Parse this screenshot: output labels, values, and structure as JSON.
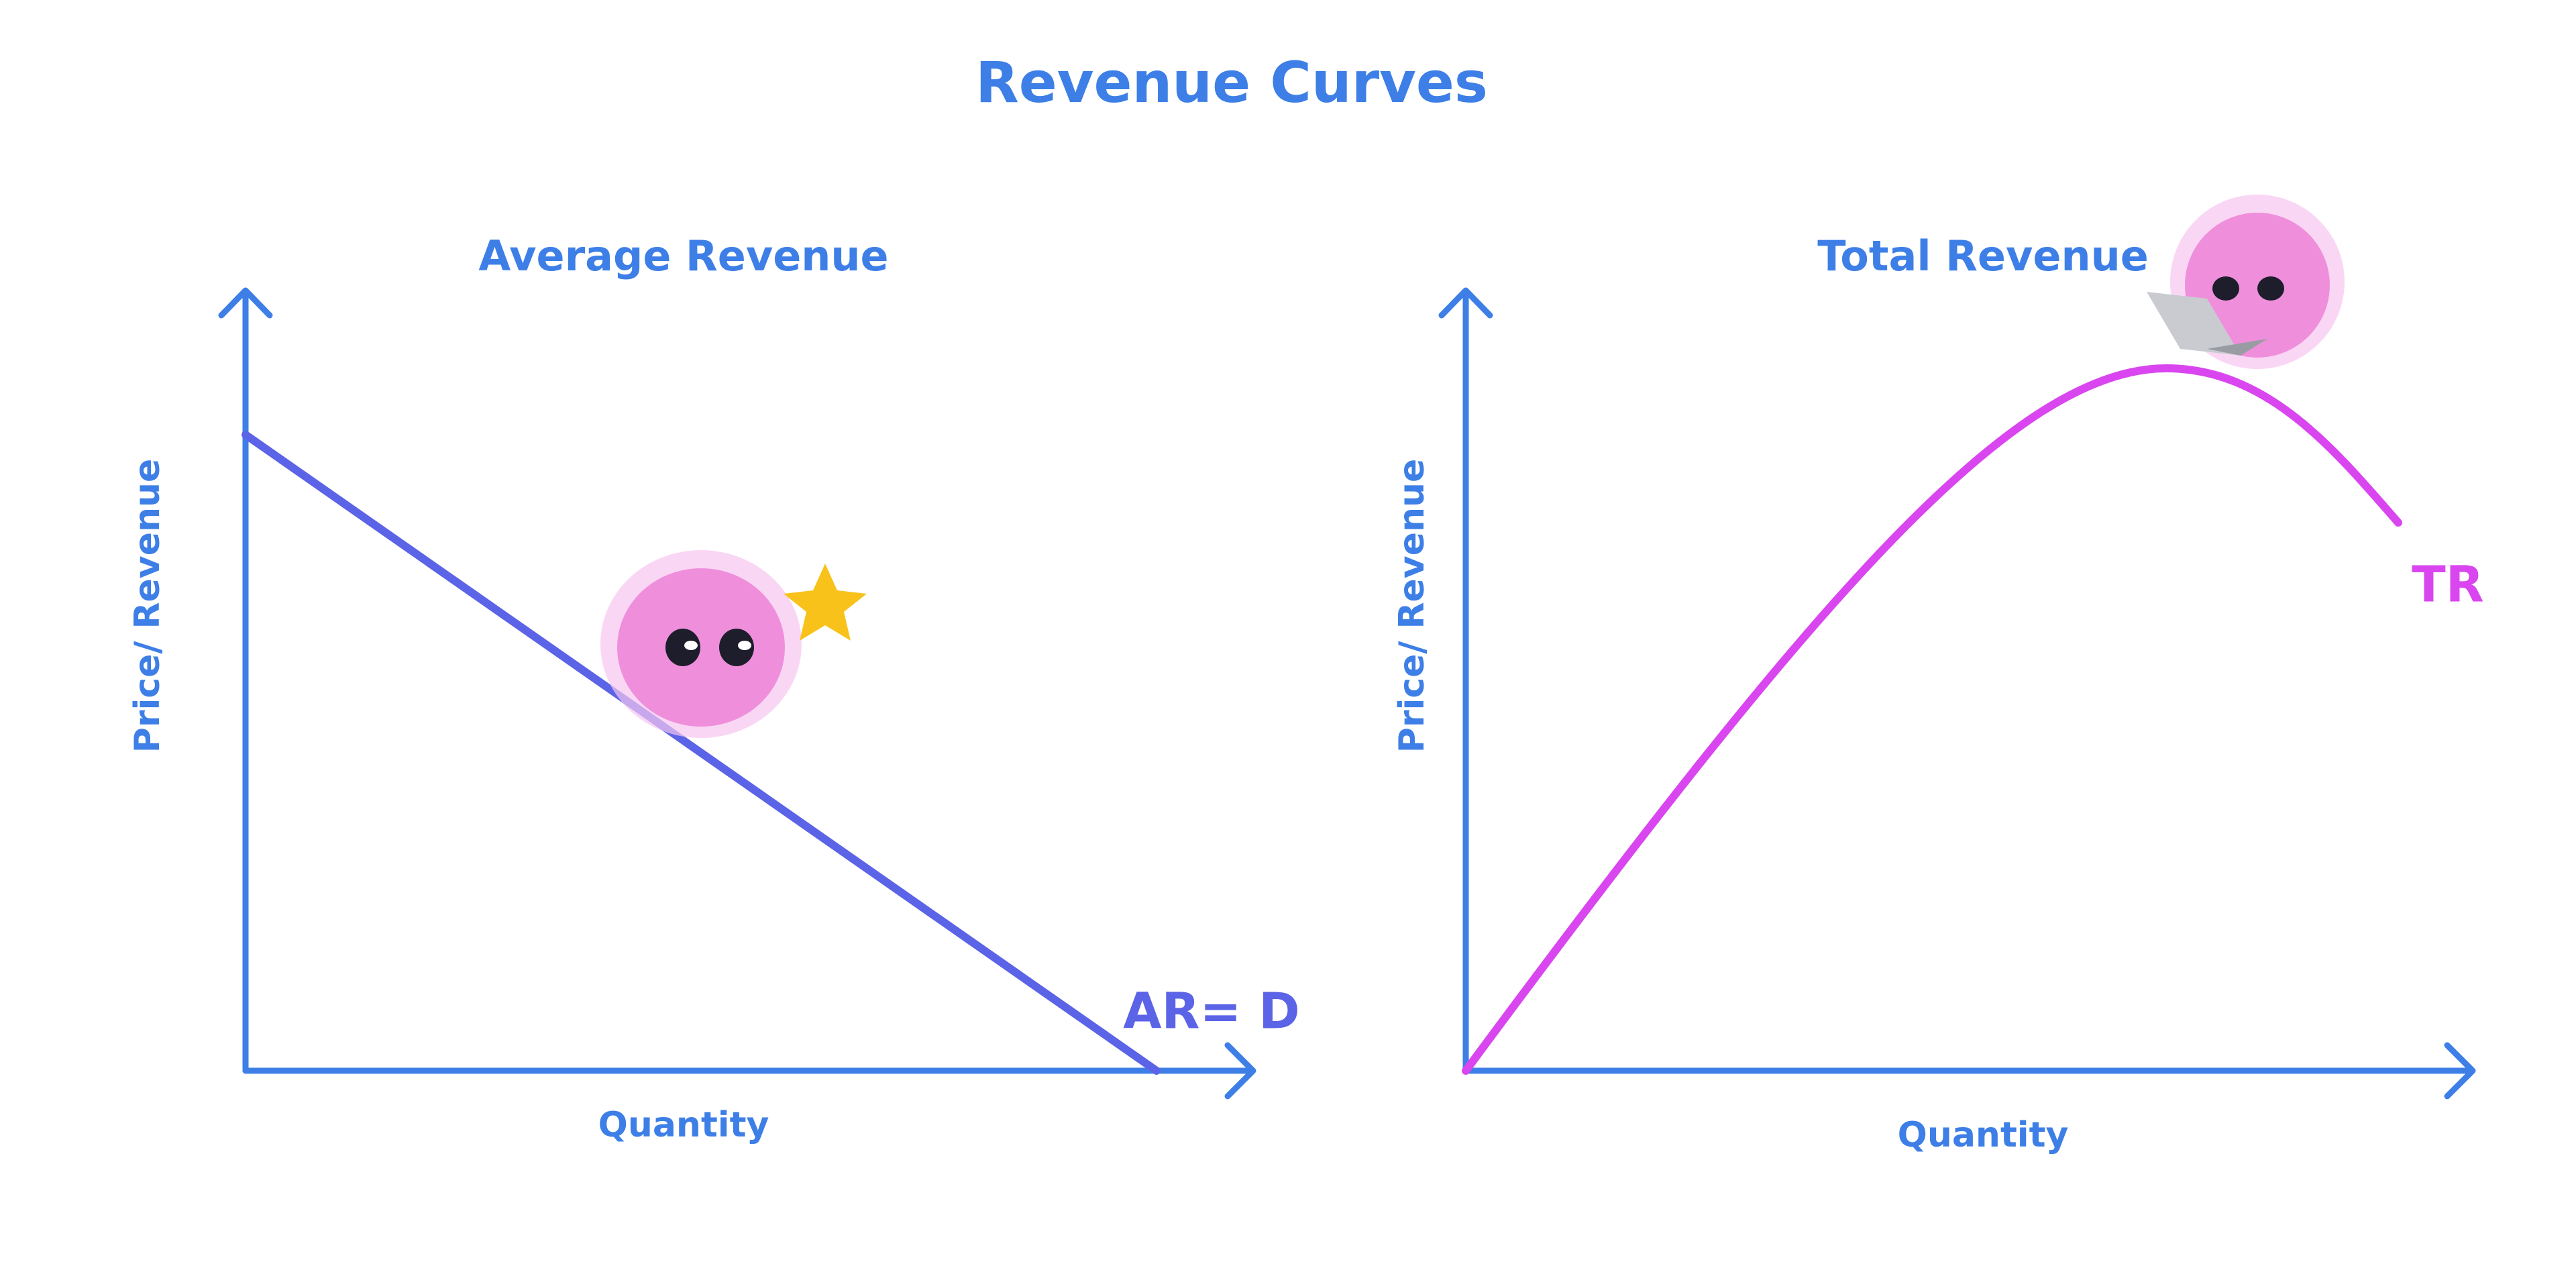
{
  "title": "Revenue Curves",
  "panels": [
    {
      "title": "Average Revenue",
      "y_label": "Price/ Revenue",
      "x_label": "Quantity",
      "curve_label": "AR= D"
    },
    {
      "title": "Total Revenue",
      "y_label": "Price/ Revenue",
      "x_label": "Quantity",
      "curve_label": "TR"
    }
  ]
}
